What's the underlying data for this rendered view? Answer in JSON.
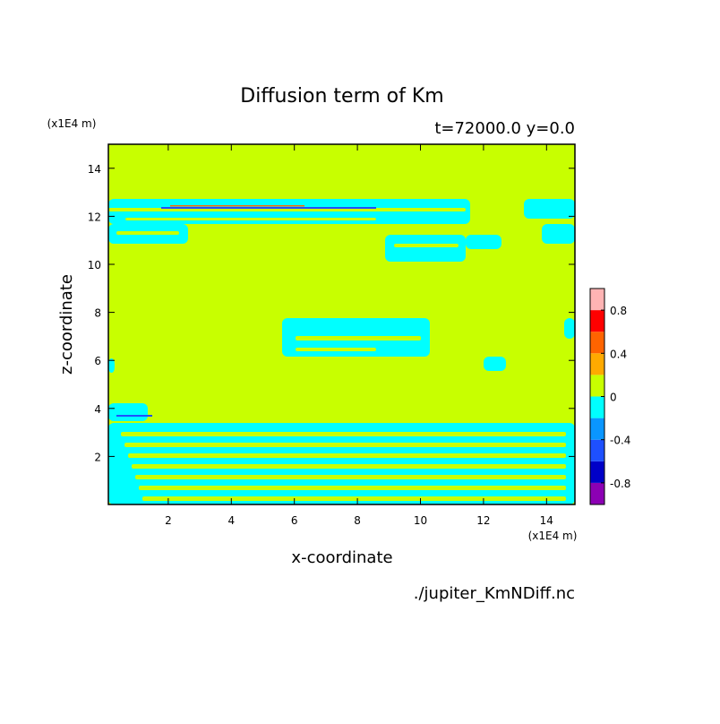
{
  "chart_data": {
    "type": "contour",
    "title": "Diffusion term of Km",
    "subtitle": "t=72000.0 y=0.0",
    "x_label": "x-coordinate",
    "y_label": "z-coordinate",
    "x_unit": "(x1E4 m)",
    "y_unit": "(x1E4 m)",
    "source": "./jupiter_KmNDiff.nc",
    "xlim": [
      0.1,
      14.9
    ],
    "ylim": [
      0,
      15
    ],
    "xticks": [
      2,
      4,
      6,
      8,
      10,
      12,
      14
    ],
    "yticks": [
      2,
      4,
      6,
      8,
      10,
      12,
      14
    ],
    "colorbar": {
      "levels": [
        -1,
        -0.8,
        -0.6,
        -0.4,
        -0.2,
        0,
        0.2,
        0.4,
        0.6,
        0.8,
        1
      ],
      "colors": [
        "#8c00b4",
        "#0000c8",
        "#1e50ff",
        "#0a96ff",
        "#00ffff",
        "#c8ff00",
        "#ffaa00",
        "#ff6400",
        "#ff0000",
        "#ffb4b4"
      ],
      "ticks": [
        -0.8,
        -0.4,
        0,
        0.4,
        0.8
      ]
    }
  }
}
